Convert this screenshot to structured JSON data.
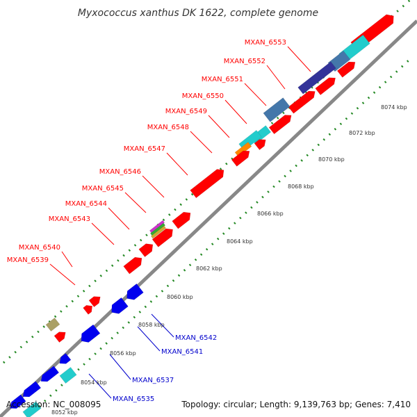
{
  "title": "Myxococcus xanthus DK 1622, complete genome",
  "footer": {
    "accession": "Accession: NC_008095",
    "summary": "Topology: circular; Length: 9,139,763 bp; Genes: 7,410"
  },
  "kbp_ticks": [
    "8052 kbp",
    "8054 kbp",
    "8056 kbp",
    "8058 kbp",
    "8060 kbp",
    "8062 kbp",
    "8064 kbp",
    "8066 kbp",
    "8068 kbp",
    "8070 kbp",
    "8072 kbp",
    "8074 kbp"
  ],
  "forward_labels": [
    "MXAN_6553",
    "MXAN_6552",
    "MXAN_6551",
    "MXAN_6550",
    "MXAN_6549",
    "MXAN_6548",
    "MXAN_6547",
    "MXAN_6546",
    "MXAN_6545",
    "MXAN_6544",
    "MXAN_6543",
    "MXAN_6540",
    "MXAN_6539"
  ],
  "reverse_labels": [
    "MXAN_6542",
    "MXAN_6541",
    "MXAN_6537",
    "MXAN_6535"
  ],
  "colors": {
    "forward_cds": "#ff0000",
    "reverse_cds": "#0000ee",
    "cyan_feature": "#22cccc",
    "steelblue_feature": "#4477aa",
    "navy_feature": "#333399",
    "orange_feature": "#ff8800",
    "khaki_feature": "#aaa066",
    "backbone": "#888888",
    "tick_dots": "#228822"
  }
}
